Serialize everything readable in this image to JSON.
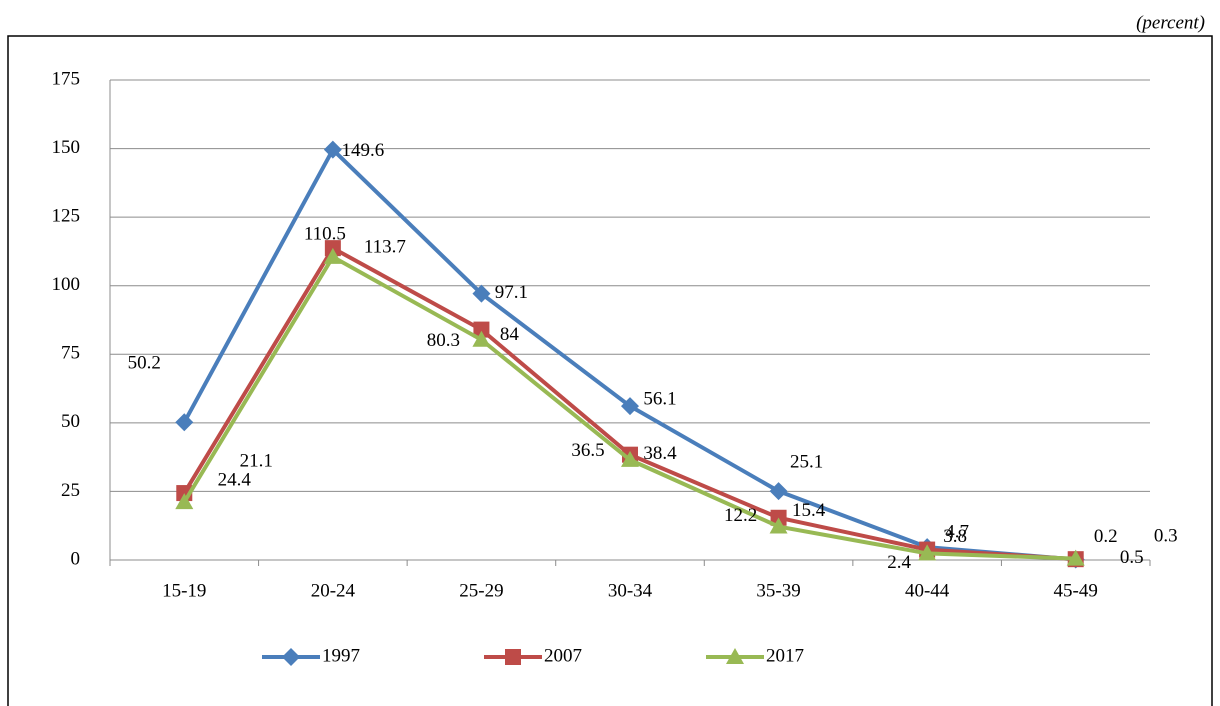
{
  "chart_data": {
    "type": "line",
    "note": "(percent)",
    "categories": [
      "15-19",
      "20-24",
      "25-29",
      "30-34",
      "35-39",
      "40-44",
      "45-49"
    ],
    "series": [
      {
        "name": "1997",
        "color": "#4a7ebb",
        "marker": "diamond",
        "values": [
          50.2,
          149.6,
          97.1,
          56.1,
          25.1,
          4.7,
          0.2
        ]
      },
      {
        "name": "2007",
        "color": "#be4b48",
        "marker": "square",
        "values": [
          24.4,
          113.7,
          84,
          38.4,
          15.4,
          3.8,
          0.3
        ]
      },
      {
        "name": "2017",
        "color": "#98b954",
        "marker": "triangle",
        "values": [
          21.1,
          110.5,
          80.3,
          36.5,
          12.2,
          2.4,
          0.5
        ]
      }
    ],
    "ylim": [
      0,
      175
    ],
    "yticks": [
      0,
      25,
      50,
      75,
      100,
      125,
      150,
      175
    ],
    "grid": true,
    "legend": "bottom"
  }
}
